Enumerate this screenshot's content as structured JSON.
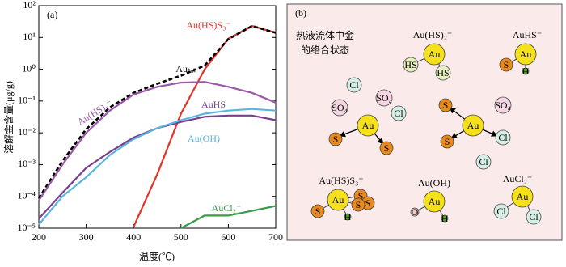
{
  "chart_data": {
    "type": "line",
    "panel_label": "(a)",
    "x_label": "温度(℃)",
    "y_label": "溶解金含量(μg/g)",
    "log_y": true,
    "x": [
      200,
      250,
      300,
      350,
      400,
      450,
      500,
      550,
      600,
      650,
      700
    ],
    "xlim": [
      200,
      700
    ],
    "xticks": [
      200,
      300,
      400,
      500,
      600,
      700
    ],
    "ylim": [
      1e-05,
      100
    ],
    "yticks": [
      {
        "value": 1e-05,
        "label": "10⁻⁵"
      },
      {
        "value": 0.0001,
        "label": "10⁻⁴"
      },
      {
        "value": 0.001,
        "label": "10⁻³"
      },
      {
        "value": 0.01,
        "label": "10⁻²"
      },
      {
        "value": 0.1,
        "label": "10⁻¹"
      },
      {
        "value": 1,
        "label": "10⁰"
      },
      {
        "value": 10,
        "label": "10¹"
      },
      {
        "value": 100,
        "label": "10²"
      }
    ],
    "series": [
      {
        "name": "Au(HS)S₃⁻",
        "color": "#e3342a",
        "values": [
          null,
          null,
          null,
          null,
          1.1e-05,
          0.0005,
          0.04,
          1.0,
          9.1,
          23,
          14
        ]
      },
      {
        "name": "Auₜₒₜ",
        "color": "#000000",
        "dash": true,
        "values": [
          8.7e-05,
          0.0013,
          0.013,
          0.063,
          0.18,
          0.35,
          0.63,
          1.3,
          8.9,
          23,
          14
        ]
      },
      {
        "name": "Au(HS)₂⁻",
        "color": "#9a5aa8",
        "values": [
          7.4e-05,
          0.001,
          0.01,
          0.05,
          0.16,
          0.28,
          0.38,
          0.4,
          0.28,
          0.18,
          0.089
        ]
      },
      {
        "name": "AuHS",
        "color": "#7a3f8f",
        "values": [
          2e-05,
          0.00013,
          0.00079,
          0.0025,
          0.0071,
          0.014,
          0.022,
          0.032,
          0.035,
          0.035,
          0.025
        ]
      },
      {
        "name": "Au(OH)",
        "color": "#5ab4e0",
        "values": [
          1.3e-05,
          0.0001,
          0.0004,
          0.002,
          0.0063,
          0.014,
          0.025,
          0.04,
          0.05,
          0.056,
          0.05
        ]
      },
      {
        "name": "AuCl₂⁻",
        "color": "#3a9a4a",
        "values": [
          null,
          null,
          null,
          null,
          null,
          null,
          1e-05,
          2.5e-05,
          2.5e-05,
          3.5e-05,
          5e-05
        ]
      }
    ]
  },
  "diagram": {
    "panel_label": "(b)",
    "caption": [
      "热液流体中金",
      "的络合状态"
    ],
    "molecules": [
      {
        "name": "Au(HS)₂⁻",
        "atoms": [
          "Au",
          "HS",
          "HS"
        ]
      },
      {
        "name": "AuHS⁻",
        "atoms": [
          "Au",
          "S",
          "H"
        ]
      },
      {
        "name": "Au(HS)S₃⁻",
        "atoms": [
          "Au",
          "S",
          "H",
          "S",
          "S",
          "S"
        ]
      },
      {
        "name": "Au(OH)",
        "atoms": [
          "Au",
          "O",
          "H"
        ]
      },
      {
        "name": "AuCl₂⁻",
        "atoms": [
          "Au",
          "Cl",
          "Cl"
        ]
      }
    ],
    "scene": [
      "Cl",
      "SO₄",
      "SO₄",
      "Cl",
      "Au",
      "S",
      "S",
      "Au",
      "S",
      "S",
      "Cl",
      "SO₄",
      "Cl"
    ]
  }
}
